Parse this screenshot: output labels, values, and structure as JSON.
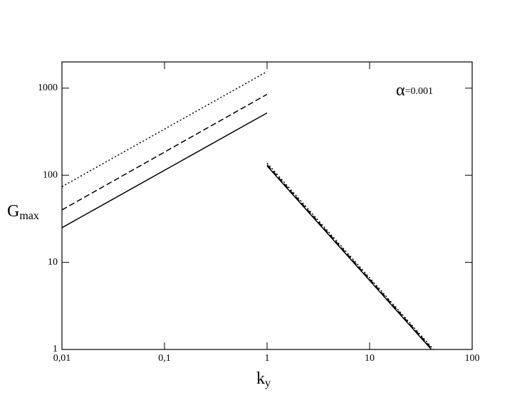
{
  "chart_data": {
    "type": "line",
    "xlabel": {
      "text": "k",
      "subscript": "y"
    },
    "ylabel": {
      "text": "G",
      "subscript": "max"
    },
    "annotation": {
      "text": "α",
      "subscript": "=0.001"
    },
    "xlog": true,
    "ylog": true,
    "xlim": [
      0.01,
      100
    ],
    "ylim": [
      1,
      2000
    ],
    "xticks": [
      {
        "value": 0.01,
        "label": "0,01"
      },
      {
        "value": 0.1,
        "label": "0,1"
      },
      1,
      10,
      100
    ],
    "yticks": [
      1,
      10,
      100,
      1000
    ],
    "series": [
      {
        "color": "#000000",
        "dash": "solid",
        "x": [
          0.01,
          1,
          1,
          1,
          40
        ],
        "values": [
          25,
          520,
          null,
          128,
          1
        ]
      },
      {
        "color": "#000000",
        "dash": "dashed",
        "x": [
          0.01,
          1,
          1,
          1,
          41
        ],
        "values": [
          40,
          850,
          null,
          132,
          1
        ]
      },
      {
        "color": "#000000",
        "dash": "dotted",
        "x": [
          0.01,
          1,
          1,
          1,
          42
        ],
        "values": [
          74,
          1550,
          null,
          138,
          1
        ]
      }
    ]
  }
}
